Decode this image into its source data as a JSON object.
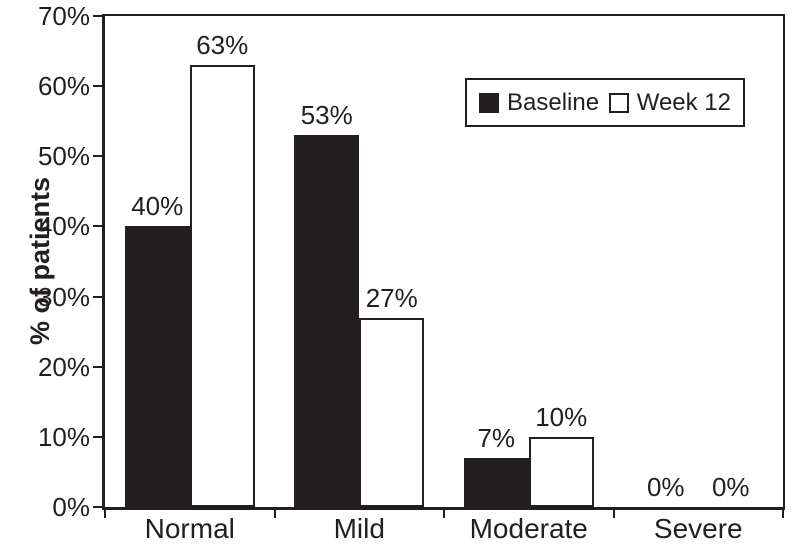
{
  "colors": {
    "ink": "#231f20",
    "paper": "#ffffff"
  },
  "chart_data": {
    "type": "bar",
    "title": "",
    "ylabel": "% of patients",
    "xlabel": "",
    "ylim": [
      0,
      70
    ],
    "ytick_step": 10,
    "grid": false,
    "legend_position": "top-right",
    "categories": [
      "Normal",
      "Mild",
      "Moderate",
      "Severe"
    ],
    "series": [
      {
        "name": "Baseline",
        "fill": "#231f20",
        "outline": false,
        "values": [
          40,
          53,
          7,
          0
        ],
        "labels": [
          "40%",
          "53%",
          "7%",
          "0%"
        ]
      },
      {
        "name": "Week 12",
        "fill": "#ffffff",
        "outline": true,
        "values": [
          63,
          27,
          10,
          0
        ],
        "labels": [
          "63%",
          "27%",
          "10%",
          "0%"
        ]
      }
    ],
    "yticks": [
      {
        "v": 0,
        "label": "0%"
      },
      {
        "v": 10,
        "label": "10%"
      },
      {
        "v": 20,
        "label": "20%"
      },
      {
        "v": 30,
        "label": "30%"
      },
      {
        "v": 40,
        "label": "40%"
      },
      {
        "v": 50,
        "label": "50%"
      },
      {
        "v": 60,
        "label": "60%"
      },
      {
        "v": 70,
        "label": "70%"
      }
    ]
  }
}
